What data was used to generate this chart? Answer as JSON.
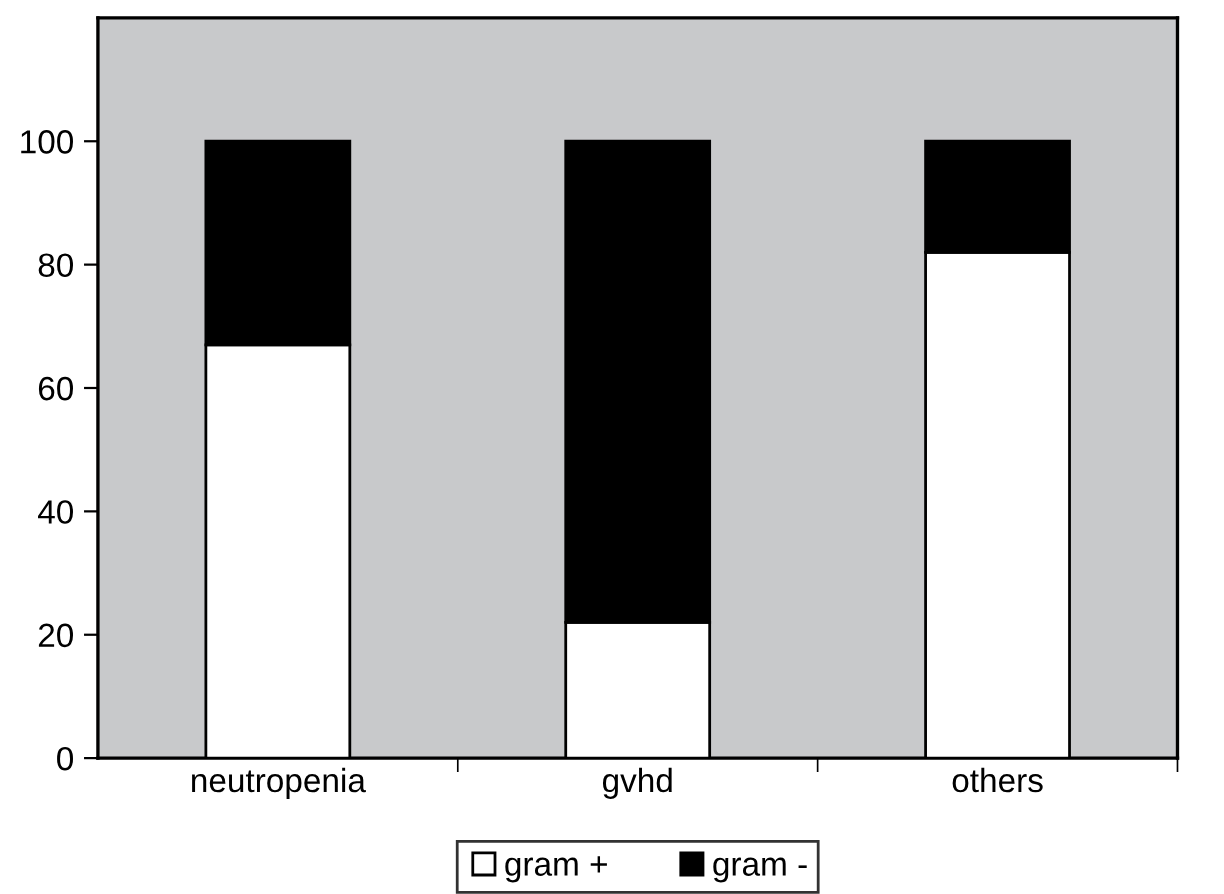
{
  "chart_data": {
    "type": "bar",
    "stacked": true,
    "categories": [
      "neutropenia",
      "gvhd",
      "others"
    ],
    "series": [
      {
        "name": "gram +",
        "color": "#ffffff",
        "values": [
          67,
          22,
          82
        ]
      },
      {
        "name": "gram -",
        "color": "#000000",
        "values": [
          33,
          78,
          18
        ]
      }
    ],
    "ylim": [
      0,
      120
    ],
    "yticks": [
      0,
      20,
      40,
      60,
      80,
      100
    ],
    "grid": false,
    "legend": "bottom"
  }
}
